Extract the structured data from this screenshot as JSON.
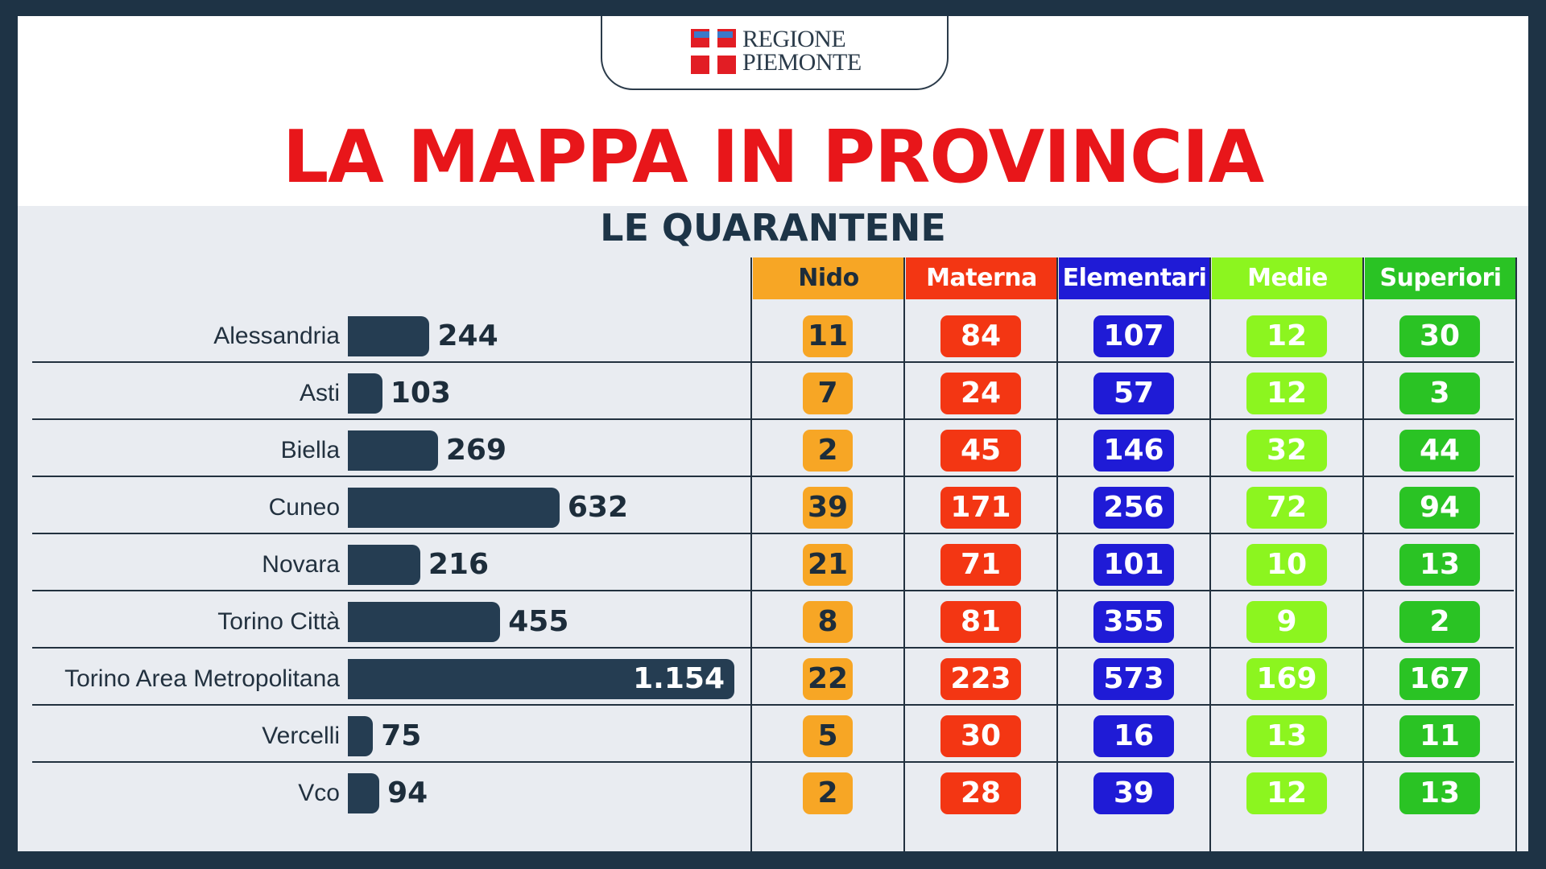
{
  "logo": {
    "line1": "REGIONE",
    "line2": "PIEMONTE"
  },
  "title": "LA MAPPA IN PROVINCIA",
  "subtitle": "LE QUARANTENE",
  "colors": {
    "nido": "#f7a625",
    "materna": "#f33613",
    "elementari": "#1f1bd6",
    "medie": "#8cf51f",
    "superiori": "#2ac324",
    "bar": "#253d52"
  },
  "chart_data": {
    "type": "table",
    "title": "LE QUARANTENE",
    "columns": [
      "Nido",
      "Materna",
      "Elementari",
      "Medie",
      "Superiori"
    ],
    "rows": [
      {
        "province": "Alessandria",
        "total": 244,
        "total_label": "244",
        "values": [
          11,
          84,
          107,
          12,
          30
        ]
      },
      {
        "province": "Asti",
        "total": 103,
        "total_label": "103",
        "values": [
          7,
          24,
          57,
          12,
          3
        ]
      },
      {
        "province": "Biella",
        "total": 269,
        "total_label": "269",
        "values": [
          2,
          45,
          146,
          32,
          44
        ]
      },
      {
        "province": "Cuneo",
        "total": 632,
        "total_label": "632",
        "values": [
          39,
          171,
          256,
          72,
          94
        ]
      },
      {
        "province": "Novara",
        "total": 216,
        "total_label": "216",
        "values": [
          21,
          71,
          101,
          10,
          13
        ]
      },
      {
        "province": "Torino Città",
        "total": 455,
        "total_label": "455",
        "values": [
          8,
          81,
          355,
          9,
          2
        ]
      },
      {
        "province": "Torino Area Metropolitana",
        "total": 1154,
        "total_label": "1.154",
        "values": [
          22,
          223,
          573,
          169,
          167
        ]
      },
      {
        "province": "Vercelli",
        "total": 75,
        "total_label": "75",
        "values": [
          5,
          30,
          16,
          13,
          11
        ]
      },
      {
        "province": "Vco",
        "total": 94,
        "total_label": "94",
        "values": [
          2,
          28,
          39,
          12,
          13
        ]
      }
    ]
  }
}
